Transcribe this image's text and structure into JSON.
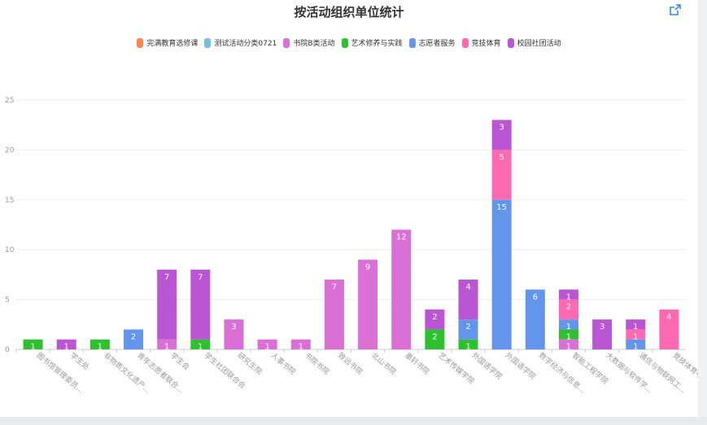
{
  "title": "按活动组织单位统计",
  "icons": {
    "export": "export-icon"
  },
  "colors": {
    "background": "#ffffff",
    "page": "#f0f1f5",
    "grid": "#eeeeee",
    "axis_text": "#999999",
    "label_text": "#ffffff"
  },
  "chart_data": {
    "type": "bar",
    "stacked": true,
    "title": "按活动组织单位统计",
    "xlabel": "",
    "ylabel": "",
    "ylim": [
      0,
      25
    ],
    "yticks": [
      0,
      5,
      10,
      15,
      20,
      25
    ],
    "grid": true,
    "legend_position": "top-center",
    "categories": [
      "图书馆管理委员...",
      "学生处",
      "非物质文化遗产...",
      "青年志愿者联合...",
      "学生会",
      "学生社团联合会",
      "研究生院",
      "人事书院",
      "书院书院",
      "致远书院",
      "北山书院",
      "墨轩书院",
      "艺术传媒学院",
      "外国语学院",
      "外国语学院",
      "数字经济与信息...",
      "智能工程学院",
      "大数据与软件学...",
      "通信与物联网工...",
      "竞技体育中心"
    ],
    "series": [
      {
        "name": "完满教育选修课",
        "color": "#fc8452",
        "values": [
          0,
          0,
          0,
          0,
          0,
          0,
          0,
          0,
          0,
          0,
          0,
          0,
          0,
          0,
          0,
          0,
          0,
          0,
          0,
          0
        ]
      },
      {
        "name": "测试活动分类0721",
        "color": "#73c0de",
        "values": [
          0,
          0,
          0,
          0,
          0,
          0,
          0,
          0,
          0,
          0,
          0,
          0,
          0,
          0,
          0,
          0,
          0,
          0,
          0,
          0
        ]
      },
      {
        "name": "书院B类活动",
        "color": "#da70d6",
        "values": [
          0,
          0,
          0,
          0,
          1,
          0,
          3,
          1,
          1,
          7,
          9,
          12,
          0,
          0,
          0,
          0,
          1,
          0,
          0,
          0
        ]
      },
      {
        "name": "艺术修养与实践",
        "color": "#2ec02e",
        "values": [
          1,
          0,
          1,
          0,
          0,
          1,
          0,
          0,
          0,
          0,
          0,
          0,
          2,
          1,
          0,
          0,
          1,
          0,
          0,
          0
        ]
      },
      {
        "name": "志愿者服务",
        "color": "#6495ed",
        "values": [
          0,
          0,
          0,
          2,
          0,
          0,
          0,
          0,
          0,
          0,
          0,
          0,
          0,
          2,
          15,
          6,
          1,
          0,
          1,
          0
        ]
      },
      {
        "name": "竞技体育",
        "color": "#ff69b4",
        "values": [
          0,
          0,
          0,
          0,
          0,
          0,
          0,
          0,
          0,
          0,
          0,
          0,
          0,
          0,
          5,
          0,
          2,
          0,
          1,
          4
        ]
      },
      {
        "name": "校园社团活动",
        "color": "#ba55d3",
        "values": [
          0,
          1,
          0,
          0,
          7,
          7,
          0,
          0,
          0,
          0,
          0,
          0,
          2,
          4,
          3,
          0,
          1,
          3,
          1,
          0
        ]
      }
    ]
  }
}
